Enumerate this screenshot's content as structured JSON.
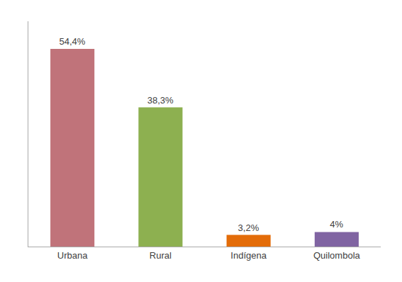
{
  "chart_data": {
    "type": "bar",
    "categories": [
      "Urbana",
      "Rural",
      "Indígena",
      "Quilombola"
    ],
    "values": [
      54.4,
      38.3,
      3.2,
      4.0
    ],
    "value_labels": [
      "54,4%",
      "38,3%",
      "3,2%",
      "4%"
    ],
    "colors": [
      "#c0737a",
      "#8db050",
      "#e36c09",
      "#8064a2"
    ],
    "ylim": [
      0,
      62
    ],
    "data_labels": true,
    "tick_labels": "x",
    "grid": false
  }
}
